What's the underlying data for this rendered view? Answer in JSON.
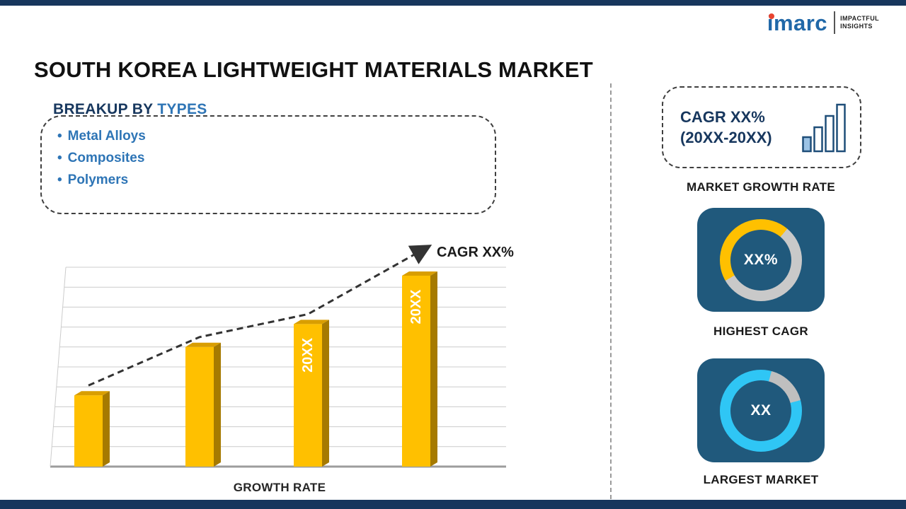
{
  "page": {
    "title": "SOUTH KOREA LIGHTWEIGHT MATERIALS MARKET"
  },
  "logo": {
    "brand": "imarc",
    "tagline_line1": "IMPACTFUL",
    "tagline_line2": "INSIGHTS"
  },
  "breakup": {
    "heading_prefix": "BREAKUP BY ",
    "heading_highlight": "TYPES",
    "items": [
      "Metal Alloys",
      "Composites",
      "Polymers"
    ]
  },
  "chart_data": {
    "type": "bar",
    "categories": [
      "",
      "",
      "20XX",
      "20XX"
    ],
    "values": [
      28,
      47,
      56,
      75
    ],
    "value_note": "relative heights, axis unlabeled",
    "title": "",
    "xlabel": "GROWTH RATE",
    "ylabel": "",
    "annotation": "CAGR XX%",
    "trend": "rising dashed arrow",
    "grid": "horizontal lines with 3D perspective",
    "bar_color": "#ffc000",
    "bar_side_color": "#a67a00",
    "bar_top_color": "#d99e00",
    "bar_label_color": "#ffffff"
  },
  "sidebar": {
    "growth_card": {
      "line1": "CAGR XX%",
      "line2": "(20XX-20XX)",
      "label": "MARKET GROWTH RATE",
      "icon": "growth-bars-icon"
    },
    "highest_cagr": {
      "value": "XX%",
      "label": "HIGHEST CAGR",
      "donut": {
        "from_deg": 240,
        "segments": [
          {
            "color": "#ffc000",
            "deg": 160
          },
          {
            "color": "#c9c9c9",
            "deg": 200
          }
        ]
      }
    },
    "largest_market": {
      "value": "XX",
      "label": "LARGEST MARKET",
      "donut": {
        "from_deg": 15,
        "segments": [
          {
            "color": "#bfbfbf",
            "deg": 60
          },
          {
            "color": "#2fc6f5",
            "deg": 300
          }
        ]
      }
    }
  },
  "colors": {
    "accent_navy": "#17365d",
    "tile_blue": "#20597c",
    "heading_navy": "#17375e",
    "heading_blue": "#2e75b6",
    "logo_blue": "#2068a8",
    "logo_dot_red": "#e8432f",
    "gold": "#ffc000",
    "cyan": "#2fc6f5",
    "ring_gray": "#c9c9c9"
  }
}
